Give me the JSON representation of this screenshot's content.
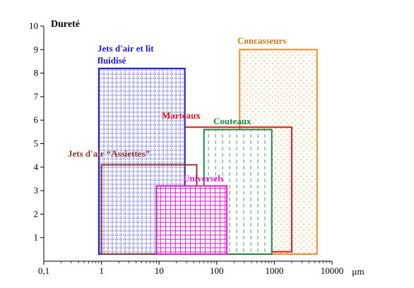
{
  "chart_data": {
    "type": "area",
    "title": "",
    "ylabel": "Dureté",
    "xlabel": "",
    "x_unit": "µm",
    "x_scale": "log",
    "xlim": [
      0.1,
      10000
    ],
    "ylim": [
      0,
      10
    ],
    "x_ticks": [
      {
        "value": 0.1,
        "label": "0,1"
      },
      {
        "value": 1,
        "label": "1"
      },
      {
        "value": 10,
        "label": "10"
      },
      {
        "value": 100,
        "label": "100"
      },
      {
        "value": 1000,
        "label": "1000"
      },
      {
        "value": 10000,
        "label": "10000"
      }
    ],
    "y_ticks": [
      1,
      2,
      3,
      4,
      5,
      6,
      7,
      8,
      9,
      10
    ],
    "series": [
      {
        "name": "Jets d'air et lit fluidisé",
        "x_range": [
          0.9,
          28
        ],
        "y_range": [
          0.3,
          8.2
        ],
        "color": "#1a1ad8",
        "pattern": "grid"
      },
      {
        "name": "Jets d'air “Assiettes”",
        "x_range": [
          1,
          45
        ],
        "y_range": [
          0.3,
          4.1
        ],
        "color": "#8b3a2a",
        "pattern": "none"
      },
      {
        "name": "Marteaux",
        "x_range": [
          8,
          2000
        ],
        "y_range": [
          0.4,
          5.7
        ],
        "color": "#e3161b",
        "pattern": "none"
      },
      {
        "name": "Universels",
        "x_range": [
          9,
          150
        ],
        "y_range": [
          0.3,
          3.2
        ],
        "color": "#e01fc8",
        "pattern": "lines"
      },
      {
        "name": "Couteaux",
        "x_range": [
          60,
          900
        ],
        "y_range": [
          0.3,
          5.6
        ],
        "color": "#1b8a3e",
        "pattern": "dashes"
      },
      {
        "name": "Concasseurs",
        "x_range": [
          250,
          5500
        ],
        "y_range": [
          0.3,
          9.0
        ],
        "color": "#f08a24",
        "pattern": "dots"
      }
    ]
  }
}
